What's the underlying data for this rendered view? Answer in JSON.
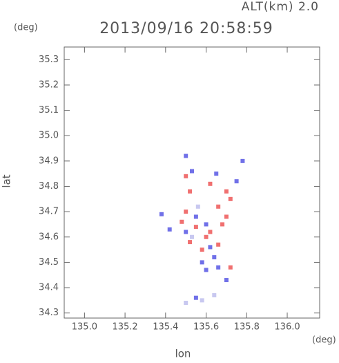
{
  "chart_data": {
    "type": "scatter",
    "title": "2013/09/16 20:58:59",
    "altitude_label": "ALT(km) 2.0",
    "y_unit": "(deg)",
    "x_unit": "(deg)",
    "xlabel": "lon",
    "ylabel": "lat",
    "xlim": [
      134.9,
      136.16
    ],
    "ylim": [
      34.28,
      35.35
    ],
    "xticks": [
      {
        "value": 135.0,
        "label": "135.0"
      },
      135.2,
      135.4,
      135.6,
      135.8,
      {
        "value": 136.0,
        "label": "136.0"
      }
    ],
    "yticks": [
      34.3,
      34.4,
      34.5,
      34.6,
      34.7,
      34.8,
      34.9,
      {
        "value": 35.0,
        "label": "35.0"
      },
      35.1,
      35.2,
      35.3
    ],
    "series": [
      {
        "color": "#f07070",
        "x": [
          135.5,
          135.52,
          135.62,
          135.7,
          135.72,
          135.48,
          135.55,
          135.6,
          135.68,
          135.7,
          135.52,
          135.58,
          135.66,
          135.72,
          135.62,
          135.5,
          135.66
        ],
        "y": [
          34.84,
          34.78,
          34.81,
          34.78,
          34.75,
          34.66,
          34.64,
          34.6,
          34.65,
          34.68,
          34.58,
          34.55,
          34.57,
          34.48,
          34.62,
          34.7,
          34.72
        ]
      },
      {
        "color": "#7070e8",
        "x": [
          135.5,
          135.53,
          135.65,
          135.75,
          135.78,
          135.38,
          135.5,
          135.55,
          135.6,
          135.62,
          135.58,
          135.64,
          135.6,
          135.7,
          135.66,
          135.42,
          135.55
        ],
        "y": [
          34.92,
          34.86,
          34.85,
          34.82,
          34.9,
          34.69,
          34.62,
          34.68,
          34.65,
          34.56,
          34.5,
          34.52,
          34.47,
          34.43,
          34.48,
          34.63,
          34.36
        ]
      },
      {
        "color": "#c8c8f0",
        "x": [
          135.5,
          135.58,
          135.64,
          135.56,
          135.53
        ],
        "y": [
          34.34,
          34.35,
          34.37,
          34.72,
          34.6
        ]
      }
    ]
  }
}
